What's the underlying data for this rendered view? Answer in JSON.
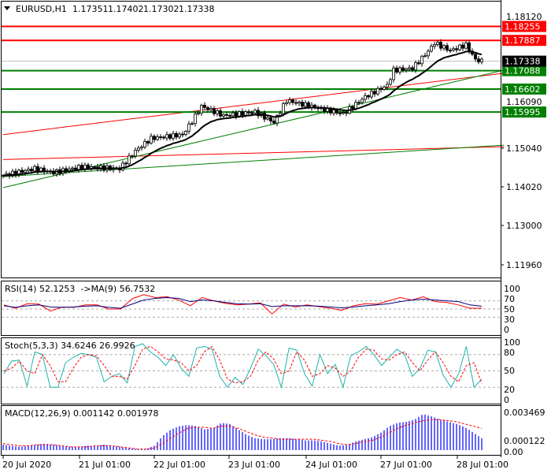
{
  "header": {
    "symbol": "EURUSD,H1",
    "open": "1.17351",
    "high": "1.17402",
    "low": "1.17302",
    "close": "1.17338"
  },
  "chart_data": [
    {
      "type": "candlestick",
      "title": "EURUSD,H1",
      "ylim": [
        1.1162,
        1.1885
      ],
      "price_ticks": [
        "1.15040",
        "1.14020",
        "1.13000",
        "1.11960"
      ],
      "hidden_ticks": [
        "1.18120",
        "1.16090"
      ],
      "close_path": [
        [
          0,
          1.1432
        ],
        [
          10,
          1.145
        ],
        [
          16,
          1.144
        ],
        [
          25,
          1.1455
        ],
        [
          37,
          1.145
        ],
        [
          42,
          1.1497
        ],
        [
          47,
          1.153
        ],
        [
          57,
          1.154
        ],
        [
          60,
          1.1575
        ],
        [
          63,
          1.1615
        ],
        [
          70,
          1.159
        ],
        [
          80,
          1.16
        ],
        [
          86,
          1.1572
        ],
        [
          90,
          1.163
        ],
        [
          100,
          1.161
        ],
        [
          108,
          1.1595
        ],
        [
          115,
          1.164
        ],
        [
          122,
          1.167
        ],
        [
          124,
          1.171
        ],
        [
          130,
          1.1715
        ],
        [
          135,
          1.176
        ],
        [
          137,
          1.1782
        ],
        [
          142,
          1.1762
        ],
        [
          147,
          1.1777
        ],
        [
          150,
          1.1738
        ],
        [
          152,
          1.17338
        ]
      ],
      "current_price": {
        "label": "1.17338",
        "value": 1.17338,
        "color": "#000000"
      },
      "levels": [
        {
          "label": "1.18255",
          "value": 1.18255,
          "color": "#ff0000"
        },
        {
          "label": "1.17887",
          "value": 1.17887,
          "color": "#ff0000"
        },
        {
          "label": "1.17088",
          "value": 1.17088,
          "color": "#007f00"
        },
        {
          "label": "1.16602",
          "value": 1.16602,
          "color": "#007f00"
        },
        {
          "label": "1.15995",
          "value": 1.15995,
          "color": "#007f00"
        }
      ],
      "trendlines": [
        {
          "color": "#ff0000",
          "from": [
            0,
            1.154
          ],
          "to": [
            159,
            1.1702
          ]
        },
        {
          "color": "#ff0000",
          "from": [
            0,
            1.1474
          ],
          "to": [
            159,
            1.1508
          ]
        },
        {
          "color": "#007f00",
          "from": [
            0,
            1.14
          ],
          "to": [
            159,
            1.171
          ]
        },
        {
          "color": "#007f00",
          "from": [
            0,
            1.1429
          ],
          "to": [
            159,
            1.1512
          ]
        }
      ]
    },
    {
      "type": "line",
      "title": "RSI(14) 52.1253  ->MA(9) 56.7532",
      "ylim": [
        0,
        100
      ],
      "ticks": [
        "100",
        "70",
        "50",
        "30",
        "0"
      ],
      "series": [
        {
          "name": "RSI",
          "color": "#ff0000",
          "values": [
            60,
            52,
            63,
            62,
            45,
            55,
            54,
            60,
            60,
            50,
            50,
            75,
            85,
            78,
            80,
            72,
            58,
            78,
            70,
            64,
            60,
            62,
            65,
            38,
            62,
            55,
            60,
            56,
            52,
            47,
            58,
            63,
            62,
            70,
            78,
            72,
            80,
            68,
            66,
            60,
            52,
            52
          ]
        },
        {
          "name": "MA",
          "color": "#00007f",
          "values": [
            58,
            54,
            58,
            60,
            55,
            54,
            55,
            57,
            58,
            54,
            52,
            62,
            72,
            76,
            78,
            76,
            68,
            72,
            70,
            66,
            63,
            62,
            63,
            56,
            58,
            58,
            58,
            57,
            55,
            53,
            55,
            58,
            60,
            63,
            68,
            72,
            74,
            72,
            70,
            68,
            60,
            57
          ]
        }
      ]
    },
    {
      "type": "line",
      "title": "Stoch(5,3,3) 34.6246 26.9926",
      "ylim": [
        0,
        100
      ],
      "ticks": [
        "100",
        "80",
        "50",
        "20",
        "0"
      ],
      "series": [
        {
          "name": "Main",
          "color": "#20b2aa",
          "values": [
            45,
            68,
            70,
            22,
            85,
            80,
            20,
            20,
            65,
            75,
            82,
            80,
            75,
            30,
            40,
            45,
            28,
            95,
            100,
            85,
            75,
            60,
            80,
            55,
            40,
            92,
            95,
            90,
            40,
            20,
            38,
            25,
            55,
            90,
            78,
            62,
            20,
            92,
            88,
            45,
            22,
            80,
            45,
            62,
            20,
            78,
            85,
            95,
            80,
            60,
            75,
            90,
            80,
            40,
            55,
            88,
            85,
            42,
            20,
            45,
            95,
            20,
            35
          ]
        },
        {
          "name": "Signal",
          "color": "#ff0000",
          "values": [
            50,
            55,
            68,
            50,
            45,
            80,
            60,
            30,
            30,
            55,
            75,
            80,
            78,
            60,
            40,
            40,
            35,
            60,
            90,
            95,
            85,
            72,
            70,
            65,
            50,
            60,
            85,
            95,
            70,
            35,
            28,
            30,
            40,
            70,
            85,
            72,
            45,
            50,
            85,
            70,
            40,
            45,
            60,
            55,
            40,
            50,
            75,
            90,
            88,
            72,
            70,
            80,
            85,
            65,
            50,
            70,
            85,
            65,
            40,
            30,
            60,
            65,
            27
          ]
        }
      ]
    },
    {
      "type": "bar",
      "title": "MACD(12,26,9) 0.001142 0.001978",
      "ticks": [
        "0.003469",
        "0.000122",
        "0.00"
      ],
      "ylim": [
        0,
        0.003469
      ],
      "series": [
        {
          "name": "MACD",
          "color": "#0000ff",
          "values": [
            0.0005,
            0.0004,
            0.0003,
            0.0004,
            0.0005,
            0.0006,
            0.0005,
            0.0004,
            0.0003,
            0.0003,
            0.0004,
            0.0004,
            0.0005,
            0.0004,
            0.0003,
            0.0002,
            0.0001,
            0.0001,
            0.0004,
            0.0013,
            0.0019,
            0.0022,
            0.0023,
            0.0022,
            0.0019,
            0.002,
            0.0025,
            0.0024,
            0.0019,
            0.0014,
            0.0011,
            0.001,
            0.001,
            0.0011,
            0.0011,
            0.001,
            0.0009,
            0.0009,
            0.0008,
            0.0006,
            0.0004,
            0.0005,
            0.0008,
            0.001,
            0.0012,
            0.0016,
            0.0022,
            0.0025,
            0.0026,
            0.0028,
            0.0033,
            0.0031,
            0.0028,
            0.0026,
            0.0024,
            0.0021,
            0.0016,
            0.0011
          ]
        },
        {
          "name": "Signal",
          "color": "#ff0000",
          "values": [
            0.0006,
            0.0005,
            0.0004,
            0.0004,
            0.0005,
            0.0005,
            0.0005,
            0.0004,
            0.0003,
            0.0003,
            0.0003,
            0.0004,
            0.0004,
            0.0004,
            0.0003,
            0.0002,
            0.0001,
            0.0001,
            0.0002,
            0.0006,
            0.0011,
            0.0016,
            0.002,
            0.0021,
            0.0021,
            0.002,
            0.0022,
            0.0022,
            0.002,
            0.0017,
            0.0014,
            0.0012,
            0.0011,
            0.001,
            0.001,
            0.001,
            0.001,
            0.001,
            0.0009,
            0.0008,
            0.0006,
            0.0005,
            0.0006,
            0.0008,
            0.0009,
            0.0012,
            0.0016,
            0.002,
            0.0023,
            0.0025,
            0.0027,
            0.0028,
            0.0028,
            0.0027,
            0.0026,
            0.0024,
            0.0022,
            0.002
          ]
        }
      ]
    }
  ],
  "time_axis": [
    "20 Jul 2020",
    "21 Jul 01:00",
    "22 Jul 01:00",
    "23 Jul 01:00",
    "24 Jul 01:00",
    "27 Jul 01:00",
    "28 Jul 01:00"
  ]
}
